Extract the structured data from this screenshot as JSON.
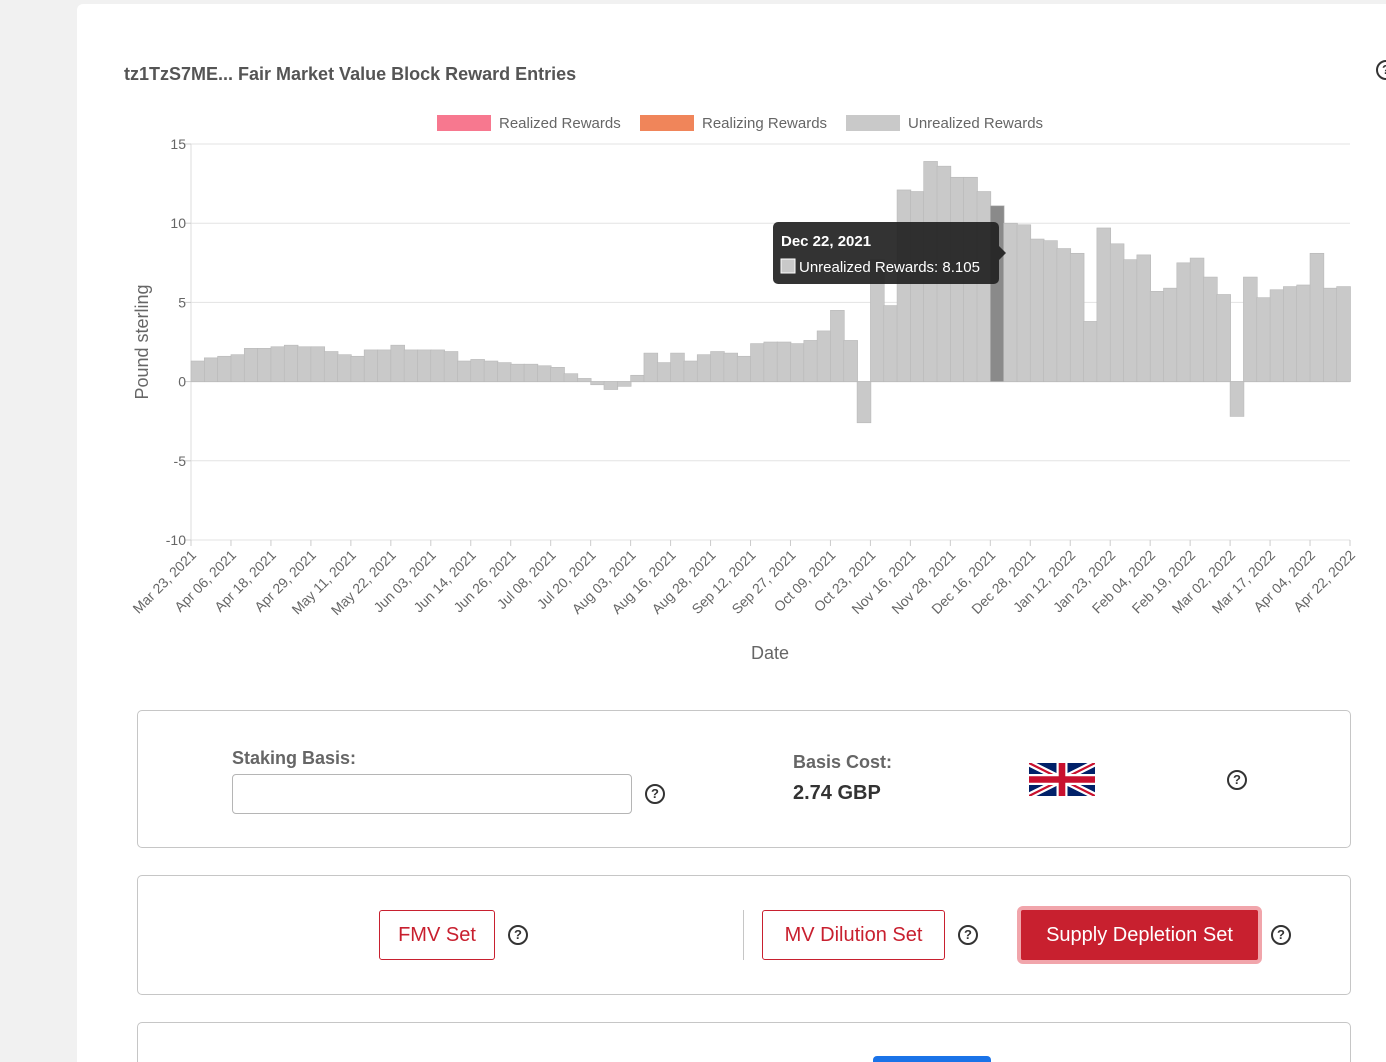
{
  "card": {
    "title": "tz1TzS7ME... Fair Market Value Block Reward Entries"
  },
  "chart_data": {
    "type": "bar",
    "title": "",
    "xlabel": "Date",
    "ylabel": "Pound sterling",
    "ylim": [
      -10,
      15
    ],
    "yticks": [
      15,
      10,
      5,
      0,
      -5,
      -10
    ],
    "grid": true,
    "legend_position": "top",
    "legend": [
      {
        "name": "Realized Rewards",
        "color": "#f7788f"
      },
      {
        "name": "Realizing Rewards",
        "color": "#f0855a"
      },
      {
        "name": "Unrealized Rewards",
        "color": "#c9c9c9"
      }
    ],
    "xtick_labels": [
      "Mar 23, 2021",
      "Apr 06, 2021",
      "Apr 18, 2021",
      "Apr 29, 2021",
      "May 11, 2021",
      "May 22, 2021",
      "Jun 03, 2021",
      "Jun 14, 2021",
      "Jun 26, 2021",
      "Jul 08, 2021",
      "Jul 20, 2021",
      "Aug 03, 2021",
      "Aug 16, 2021",
      "Aug 28, 2021",
      "Sep 12, 2021",
      "Sep 27, 2021",
      "Oct 09, 2021",
      "Oct 23, 2021",
      "Nov 16, 2021",
      "Nov 28, 2021",
      "Dec 16, 2021",
      "Dec 28, 2021",
      "Jan 12, 2022",
      "Jan 23, 2022",
      "Feb 04, 2022",
      "Feb 19, 2022",
      "Mar 02, 2022",
      "Mar 17, 2022",
      "Apr 04, 2022",
      "Apr 22, 2022"
    ],
    "series": [
      {
        "name": "Unrealized Rewards",
        "color": "#c9c9c9",
        "values": [
          1.3,
          1.5,
          1.6,
          1.7,
          2.1,
          2.1,
          2.2,
          2.3,
          2.2,
          2.2,
          1.9,
          1.7,
          1.6,
          2.0,
          2.0,
          2.3,
          2.0,
          2.0,
          2.0,
          1.9,
          1.3,
          1.4,
          1.3,
          1.2,
          1.1,
          1.1,
          1.0,
          0.9,
          0.5,
          0.2,
          -0.2,
          -0.5,
          -0.3,
          0.4,
          1.8,
          1.2,
          1.8,
          1.3,
          1.7,
          1.9,
          1.8,
          1.6,
          2.4,
          2.5,
          2.5,
          2.4,
          2.6,
          3.2,
          4.5,
          2.6,
          -2.6,
          7.7,
          4.8,
          12.1,
          12.0,
          13.9,
          13.6,
          12.9,
          12.9,
          12.0,
          11.1,
          10.0,
          9.9,
          9.0,
          8.9,
          8.4,
          8.1,
          3.8,
          9.7,
          8.7,
          7.7,
          8.0,
          5.7,
          5.9,
          7.5,
          7.8,
          6.6,
          5.5,
          -2.2,
          6.6,
          5.3,
          5.8,
          6.0,
          6.1,
          8.1,
          5.9,
          6.0
        ]
      }
    ],
    "tooltip": {
      "title": "Dec 22, 2021",
      "label": "Unrealized Rewards: 8.105"
    }
  },
  "basis": {
    "staking_label": "Staking Basis:",
    "staking_value": "",
    "cost_label": "Basis Cost:",
    "cost_value": "2.74 GBP",
    "flag_icon": "uk-flag-icon"
  },
  "sets": {
    "fmv_label": "FMV Set",
    "mv_label": "MV Dilution Set",
    "supply_label": "Supply Depletion Set"
  },
  "help_glyph": "?"
}
